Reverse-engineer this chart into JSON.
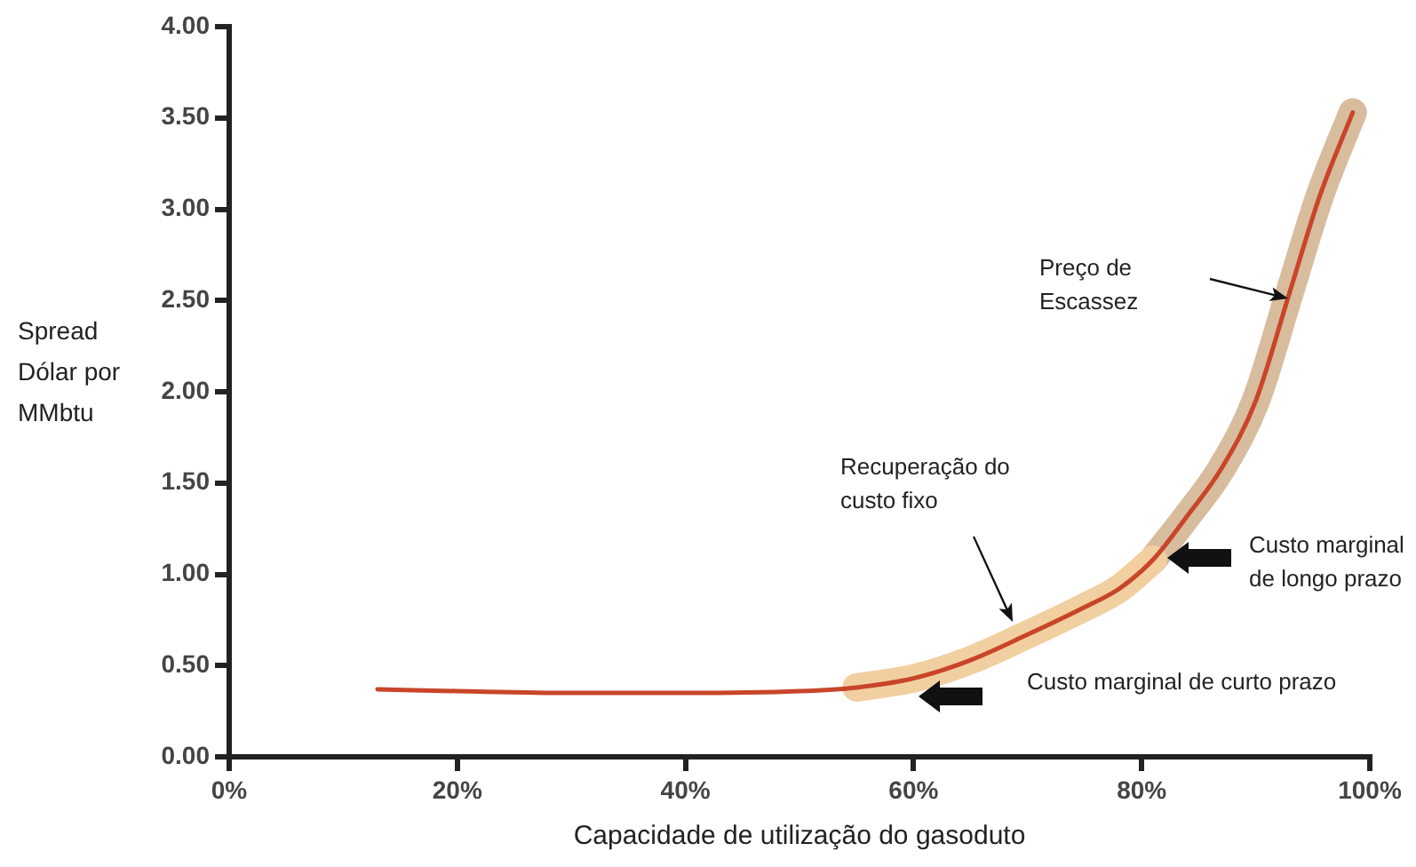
{
  "chart_data": {
    "type": "line",
    "xlabel": "Capacidade de utilização do gasoduto",
    "ylabel": "Spread Dólar por MMbtu",
    "xlim": [
      0,
      100
    ],
    "xticks": [
      {
        "value": 0,
        "label": "0%"
      },
      {
        "value": 20,
        "label": "20%"
      },
      {
        "value": 40,
        "label": "40%"
      },
      {
        "value": 60,
        "label": "60%"
      },
      {
        "value": 80,
        "label": "80%"
      },
      {
        "value": 100,
        "label": "100%"
      }
    ],
    "ylim": [
      0,
      4
    ],
    "yticks": [
      {
        "value": 0,
        "label": "0.00"
      },
      {
        "value": 0.5,
        "label": "0.50"
      },
      {
        "value": 1,
        "label": "1.00"
      },
      {
        "value": 1.5,
        "label": "1.50"
      },
      {
        "value": 2,
        "label": "2.00"
      },
      {
        "value": 2.5,
        "label": "2.50"
      },
      {
        "value": 3,
        "label": "3.00"
      },
      {
        "value": 3.5,
        "label": "3.50"
      },
      {
        "value": 4,
        "label": "4.00"
      }
    ],
    "grid": false,
    "legend": false,
    "marker": "none",
    "line_style": "solid",
    "series": [
      {
        "color": "#c8452a",
        "x": [
          13,
          20,
          30,
          40,
          50,
          55,
          60,
          65,
          70,
          75,
          78,
          81,
          84,
          87,
          90,
          93,
          95.6,
          98.5
        ],
        "values": [
          0.37,
          0.36,
          0.35,
          0.35,
          0.36,
          0.38,
          0.43,
          0.53,
          0.67,
          0.82,
          0.92,
          1.08,
          1.32,
          1.58,
          1.95,
          2.55,
          3.07,
          3.53
        ]
      },
      {
        "color": "#f2cfa0",
        "x": [
          55,
          60,
          65,
          70,
          75,
          78,
          81
        ],
        "values": [
          0.38,
          0.43,
          0.53,
          0.67,
          0.82,
          0.92,
          1.08
        ]
      },
      {
        "color": "#d8bc9e",
        "x": [
          81,
          84,
          87,
          90,
          93,
          95.6,
          98.5
        ],
        "values": [
          1.08,
          1.32,
          1.58,
          1.95,
          2.55,
          3.07,
          3.53
        ]
      }
    ],
    "annotations": [
      "Custo marginal de curto prazo",
      "Custo marginal de longo prazo",
      "Recuperação do custo fixo",
      "Preço de Escassez"
    ]
  }
}
